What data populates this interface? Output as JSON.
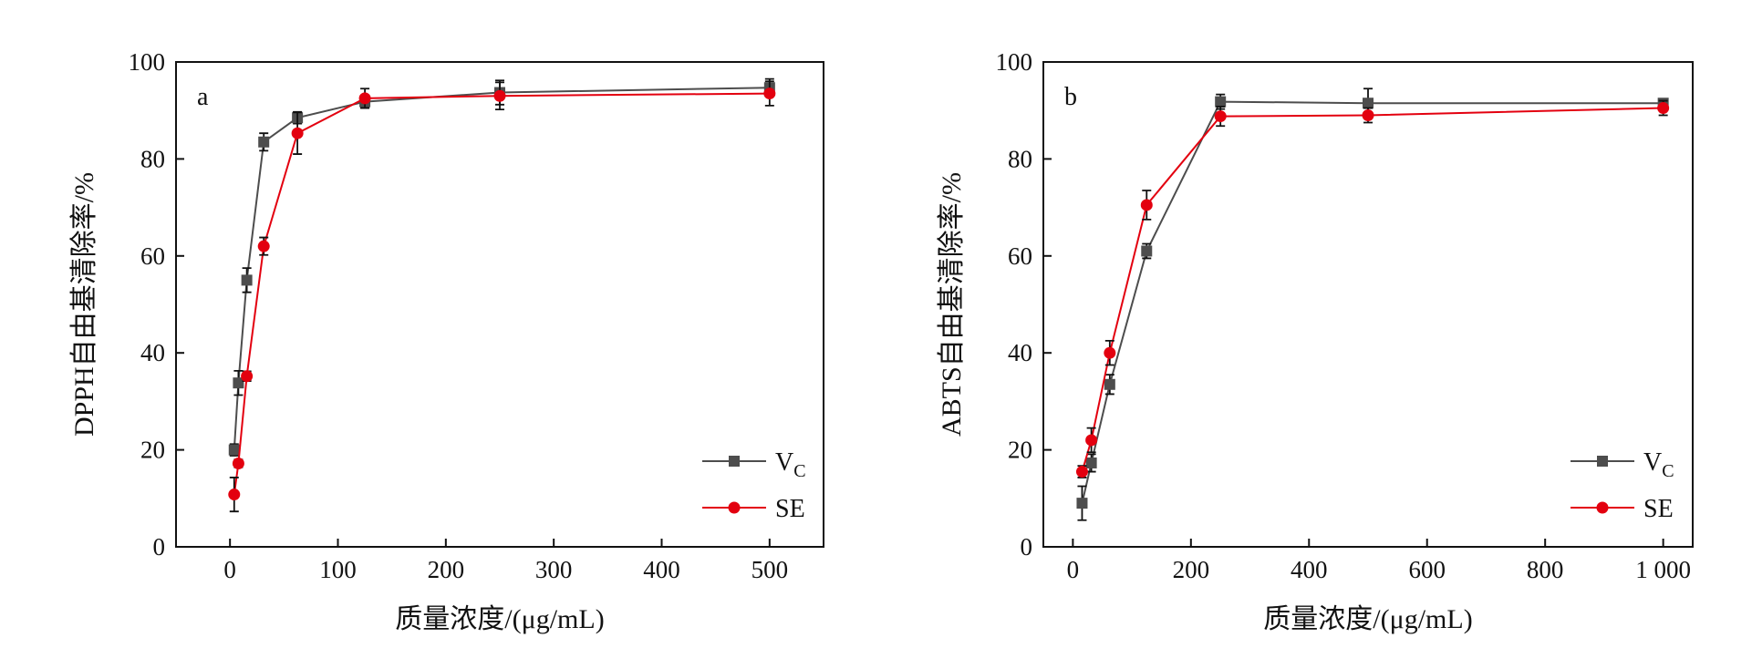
{
  "chart_data": [
    {
      "type": "line",
      "panel_label": "a",
      "xlabel": "质量浓度/(μg/mL)",
      "ylabel": "DPPH自由基清除率/%",
      "xlim": [
        -50,
        550
      ],
      "ylim": [
        0,
        100
      ],
      "xticks": [
        0,
        100,
        200,
        300,
        400,
        500
      ],
      "xtick_labels": [
        "0",
        "100",
        "200",
        "300",
        "400",
        "500"
      ],
      "yticks": [
        0,
        20,
        40,
        60,
        80,
        100
      ],
      "ytick_labels": [
        "0",
        "20",
        "40",
        "60",
        "80",
        "100"
      ],
      "grid": false,
      "legend_position": "bottom-right",
      "series": [
        {
          "name": "V",
          "name_sub": "C",
          "color": "#4d4d4d",
          "marker": "square",
          "points": [
            {
              "x": 3.9,
              "y": 20.0,
              "err": 1.2
            },
            {
              "x": 7.8,
              "y": 33.8,
              "err": 2.5
            },
            {
              "x": 15.6,
              "y": 55.0,
              "err": 2.5
            },
            {
              "x": 31.3,
              "y": 83.5,
              "err": 1.8
            },
            {
              "x": 62.5,
              "y": 88.5,
              "err": 1.2
            },
            {
              "x": 125,
              "y": 91.8,
              "err": 1.2
            },
            {
              "x": 250,
              "y": 93.7,
              "err": 2.5
            },
            {
              "x": 500,
              "y": 94.7,
              "err": 1.8
            }
          ]
        },
        {
          "name": "SE",
          "name_sub": "",
          "color": "#e3000f",
          "marker": "circle",
          "points": [
            {
              "x": 3.9,
              "y": 10.8,
              "err": 3.5
            },
            {
              "x": 7.8,
              "y": 17.2,
              "err": 0.8
            },
            {
              "x": 15.6,
              "y": 35.2,
              "err": 1.0
            },
            {
              "x": 31.3,
              "y": 62.0,
              "err": 1.8
            },
            {
              "x": 62.5,
              "y": 85.3,
              "err": 4.3
            },
            {
              "x": 125,
              "y": 92.5,
              "err": 2.0
            },
            {
              "x": 250,
              "y": 93.0,
              "err": 2.8
            },
            {
              "x": 500,
              "y": 93.5,
              "err": 2.5
            }
          ]
        }
      ]
    },
    {
      "type": "line",
      "panel_label": "b",
      "xlabel": "质量浓度/(μg/mL)",
      "ylabel": "ABTS自由基清除率/%",
      "xlim": [
        -50,
        1050
      ],
      "ylim": [
        0,
        100
      ],
      "xticks": [
        0,
        200,
        400,
        600,
        800,
        1000
      ],
      "xtick_labels": [
        "0",
        "200",
        "400",
        "600",
        "800",
        "1 000"
      ],
      "yticks": [
        0,
        20,
        40,
        60,
        80,
        100
      ],
      "ytick_labels": [
        "0",
        "20",
        "40",
        "60",
        "80",
        "100"
      ],
      "grid": false,
      "legend_position": "bottom-right",
      "series": [
        {
          "name": "V",
          "name_sub": "C",
          "color": "#4d4d4d",
          "marker": "square",
          "points": [
            {
              "x": 15.6,
              "y": 9.0,
              "err": 3.5
            },
            {
              "x": 31.3,
              "y": 17.3,
              "err": 1.8
            },
            {
              "x": 62.5,
              "y": 33.5,
              "err": 2.0
            },
            {
              "x": 125,
              "y": 61.0,
              "err": 1.5
            },
            {
              "x": 250,
              "y": 91.8,
              "err": 1.5
            },
            {
              "x": 500,
              "y": 91.5,
              "err": 3.0
            },
            {
              "x": 1000,
              "y": 91.5,
              "err": 0.8
            }
          ]
        },
        {
          "name": "SE",
          "name_sub": "",
          "color": "#e3000f",
          "marker": "circle",
          "points": [
            {
              "x": 15.6,
              "y": 15.5,
              "err": 1.2
            },
            {
              "x": 31.3,
              "y": 22.0,
              "err": 2.5
            },
            {
              "x": 62.5,
              "y": 40.0,
              "err": 2.5
            },
            {
              "x": 125,
              "y": 70.5,
              "err": 3.0
            },
            {
              "x": 250,
              "y": 88.8,
              "err": 2.0
            },
            {
              "x": 500,
              "y": 89.0,
              "err": 1.5
            },
            {
              "x": 1000,
              "y": 90.5,
              "err": 1.5
            }
          ]
        }
      ]
    }
  ]
}
